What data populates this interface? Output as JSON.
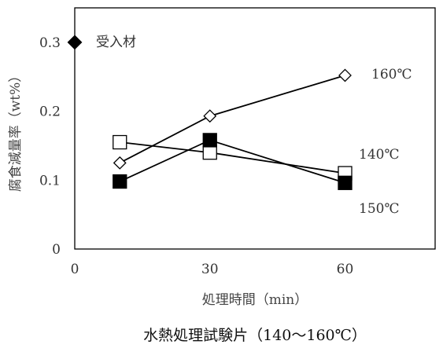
{
  "chart_data": {
    "type": "line",
    "caption": "水熱処理試験片（140～160℃）",
    "xlabel": "処理時間（min）",
    "ylabel": "腐食減量率（wt%）",
    "xlim": [
      0,
      80
    ],
    "ylim": [
      0,
      0.35
    ],
    "x_ticks": [
      "0",
      "30",
      "60"
    ],
    "y_ticks": [
      "0",
      "0.1",
      "0.2",
      "0.3"
    ],
    "grid": false,
    "series": [
      {
        "name": "160℃",
        "marker": "diamond-open",
        "points": [
          [
            10,
            0.125
          ],
          [
            30,
            0.193
          ],
          [
            60,
            0.252
          ]
        ]
      },
      {
        "name": "140℃",
        "marker": "square-open",
        "points": [
          [
            10,
            0.155
          ],
          [
            30,
            0.14
          ],
          [
            60,
            0.11
          ]
        ]
      },
      {
        "name": "150℃",
        "marker": "square-filled",
        "points": [
          [
            10,
            0.098
          ],
          [
            30,
            0.158
          ],
          [
            60,
            0.096
          ]
        ]
      }
    ],
    "reference": {
      "name": "受入材",
      "marker": "diamond-filled",
      "x": 0,
      "y": 0.3
    }
  }
}
